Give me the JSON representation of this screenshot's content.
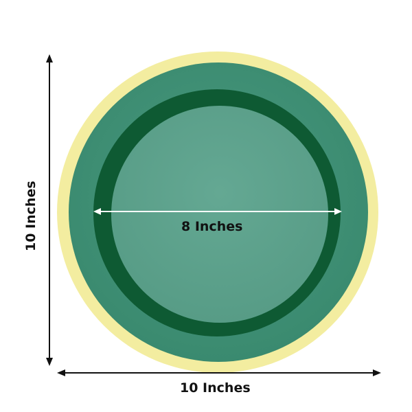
{
  "colors": {
    "gold_rim": "#f3eda0",
    "green_rim": "#3f9276",
    "dark_well": "#0e5a33",
    "inner_plate": "#5fa38f",
    "arrow_outer": "#111111",
    "arrow_inner": "#ffffff"
  },
  "labels": {
    "height": "10 Inches",
    "width": "10 Inches",
    "inner_diameter": "8 Inches"
  }
}
